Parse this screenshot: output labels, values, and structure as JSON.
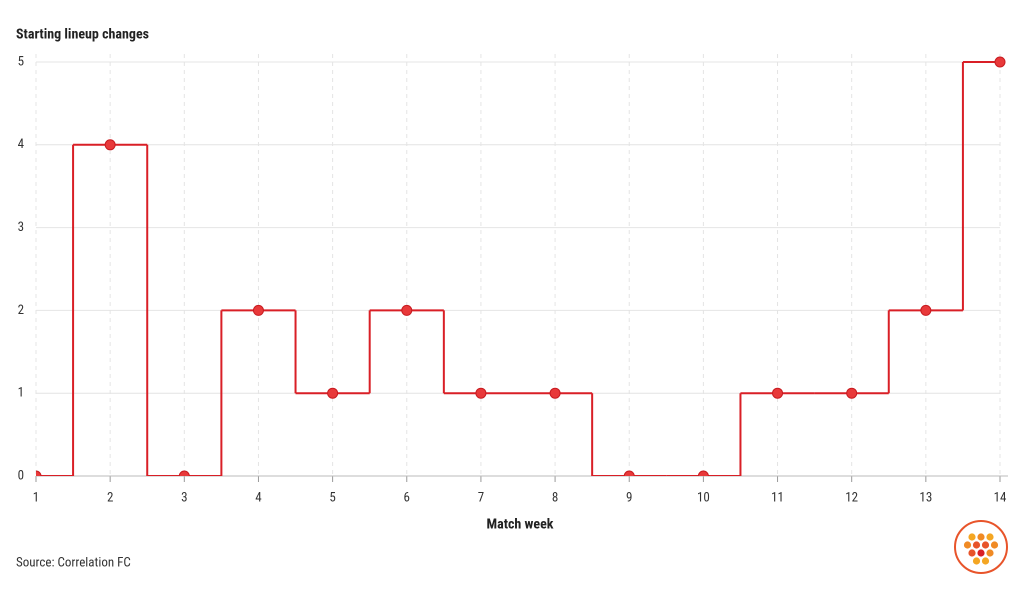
{
  "chart_data": {
    "type": "line",
    "step": "mid",
    "title": "Starting lineup changes",
    "x_label": "Match week",
    "source": "Source: Correlation FC",
    "x": [
      1,
      2,
      3,
      4,
      5,
      6,
      7,
      8,
      9,
      10,
      11,
      12,
      13,
      14
    ],
    "series": [
      {
        "name": "Starting lineup changes",
        "color": "#d91f26",
        "values": [
          0,
          4,
          0,
          2,
          1,
          2,
          1,
          1,
          0,
          0,
          1,
          1,
          2,
          5
        ]
      }
    ],
    "xlim": [
      1,
      14
    ],
    "xticks": [
      1,
      2,
      3,
      4,
      5,
      6,
      7,
      8,
      9,
      10,
      11,
      12,
      13,
      14
    ],
    "ylim": [
      0,
      5
    ],
    "yticks": [
      0,
      1,
      2,
      3,
      4,
      5
    ],
    "grid": true
  }
}
